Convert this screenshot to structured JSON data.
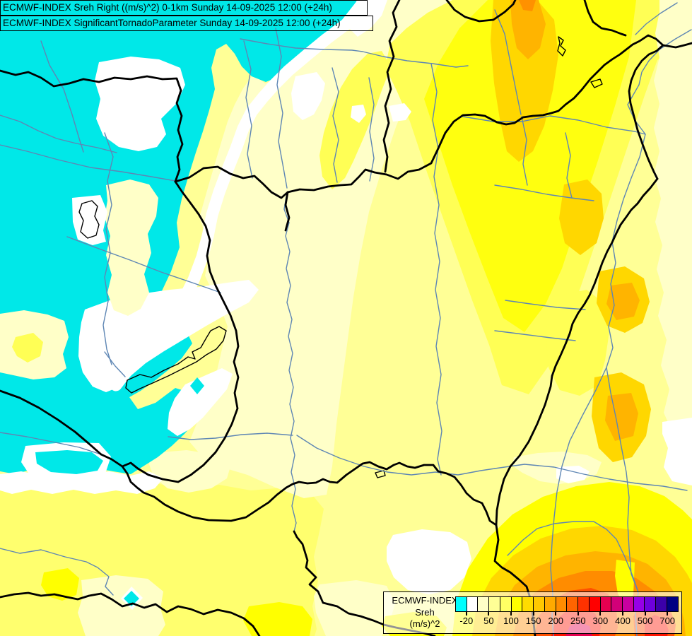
{
  "titles": {
    "line1": "ECMWF-INDEX Sreh Right ((m/s)^2) 0-1km Sunday 14-09-2025 12:00 (+24h)",
    "line2": "ECMWF-INDEX SignificantTornadoParameter Sunday 14-09-2025 12:00 (+24h)"
  },
  "legend": {
    "source_label": "ECMWF-INDEX",
    "parameter_label": "Sreh",
    "units_label": "(m/s)^2",
    "tick_labels": [
      "-20",
      "50",
      "100",
      "150",
      "200",
      "250",
      "300",
      "400",
      "500",
      "700"
    ],
    "colors": [
      "#00FFFF",
      "#FFFFFF",
      "#FFFFC8",
      "#FFFF96",
      "#FFFF64",
      "#FFFF00",
      "#FFDC00",
      "#FFC800",
      "#FFAA00",
      "#FF8C00",
      "#FF6400",
      "#FF3200",
      "#FF0000",
      "#E60050",
      "#D20078",
      "#C800A0",
      "#9600E6",
      "#6E00DC",
      "#3C00AA",
      "#000082"
    ]
  },
  "map_palette": {
    "cyan_below_minus20": "#00E8E8",
    "white_minus20_to_0": "#FFFFFF",
    "cream_0_to_25": "#FFFFC8",
    "light_yellow_25_to_75": "#FFFF96",
    "yellow_75_to_100": "#FFFF64",
    "bright_yellow_100_to_150": "#FFFF00",
    "gold_150_to_175": "#FFD700",
    "amber_175_to_200": "#FFB400",
    "orange_200_to_225": "#FF9100",
    "orange_red_250": "#FF5000",
    "red_275_to_300": "#FF1400",
    "crimson_above_300": "#E60050",
    "border_line": "#000000",
    "river_line": "#5E86B4"
  },
  "chart_data": {
    "type": "heatmap",
    "title": "ECMWF-INDEX Sreh Right ((m/s)^2) 0-1km / SignificantTornadoParameter, Sunday 14-09-2025 12:00 (+24h)",
    "colorbar": {
      "units": "(m/s)^2",
      "ticks": [
        -20,
        50,
        100,
        150,
        200,
        250,
        300,
        400,
        500,
        700
      ],
      "n_cells": 20,
      "colors": [
        "#00FFFF",
        "#FFFFFF",
        "#FFFFC8",
        "#FFFF96",
        "#FFFF64",
        "#FFFF00",
        "#FFDC00",
        "#FFC800",
        "#FFAA00",
        "#FF8C00",
        "#FF6400",
        "#FF3200",
        "#FF0000",
        "#E60050",
        "#D20078",
        "#C800A0",
        "#9600E6",
        "#6E00DC",
        "#3C00AA",
        "#000082"
      ],
      "legend_position": "bottom-right"
    },
    "regions": [
      {
        "area": "west / northwest (Austria, Czech border)",
        "sreh_range": "below -20 (cyan)"
      },
      {
        "area": "band along western rim and around Lake Balaton",
        "sreh_range": "-20 to 0 (white)"
      },
      {
        "area": "western and central Hungary",
        "sreh_range": "0 to 50 (cream)"
      },
      {
        "area": "eastern Hungary, bottom-left corner",
        "sreh_range": "50 to 100 (yellow)"
      },
      {
        "area": "northeast (Slovakia/Ukraine side) and blobs on east edge",
        "sreh_range": "100 to 200 (bright yellow to amber)"
      },
      {
        "area": "southeast corner maximum (Romania)",
        "sreh_range": "250 to 350 (red to crimson core)"
      }
    ]
  }
}
